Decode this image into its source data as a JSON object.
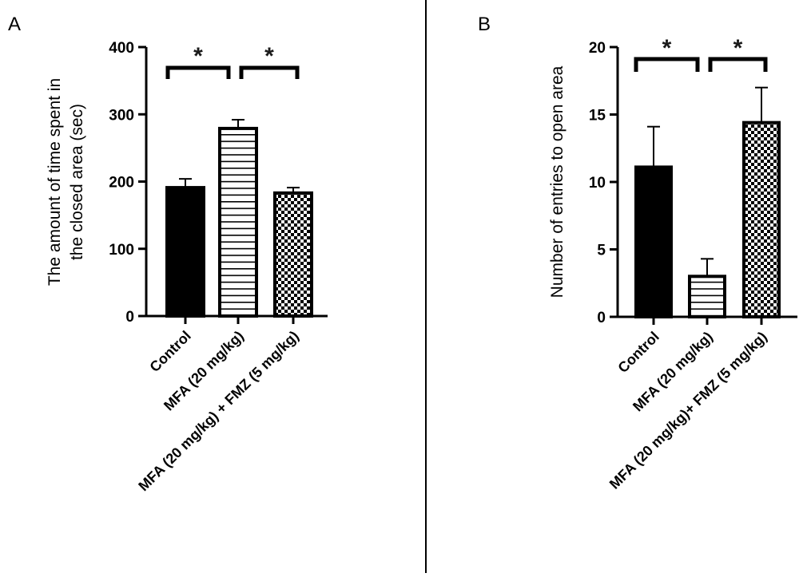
{
  "chart_data": [
    {
      "type": "bar",
      "panel_label": "A",
      "ylabel_lines": [
        "The amount of time spent in",
        "the closed area (sec)"
      ],
      "xlabel": "",
      "ylim": [
        0,
        400
      ],
      "yticks": [
        0,
        100,
        200,
        300,
        400
      ],
      "categories": [
        "Control",
        "MFA (20 mg/kg)",
        "MFA (20 mg/kg) + FMZ (5 mg/kg)"
      ],
      "fills": [
        "solid",
        "horizontal-stripes",
        "checker"
      ],
      "values": [
        191,
        279,
        183
      ],
      "error_upper": [
        204,
        292,
        191
      ],
      "significance": [
        {
          "from": 0,
          "to": 1,
          "label": "*"
        },
        {
          "from": 1,
          "to": 2,
          "label": "*"
        }
      ]
    },
    {
      "type": "bar",
      "panel_label": "B",
      "ylabel_lines": [
        "Number of entries to open area"
      ],
      "xlabel": "",
      "ylim": [
        0,
        20
      ],
      "yticks": [
        0,
        5,
        10,
        15,
        20
      ],
      "categories": [
        "Control",
        "MFA (20 mg/kg)",
        "MFA  (20 mg/kg)+ FMZ (5 mg/kg)"
      ],
      "fills": [
        "solid",
        "horizontal-stripes",
        "checker"
      ],
      "values": [
        11.1,
        3.0,
        14.4
      ],
      "error_upper": [
        14.1,
        4.3,
        17.0
      ],
      "significance": [
        {
          "from": 0,
          "to": 1,
          "label": "*"
        },
        {
          "from": 1,
          "to": 2,
          "label": "*"
        }
      ]
    }
  ],
  "colors": {
    "bar": "#000000",
    "background": "#ffffff",
    "star": "#1a1a1a"
  }
}
